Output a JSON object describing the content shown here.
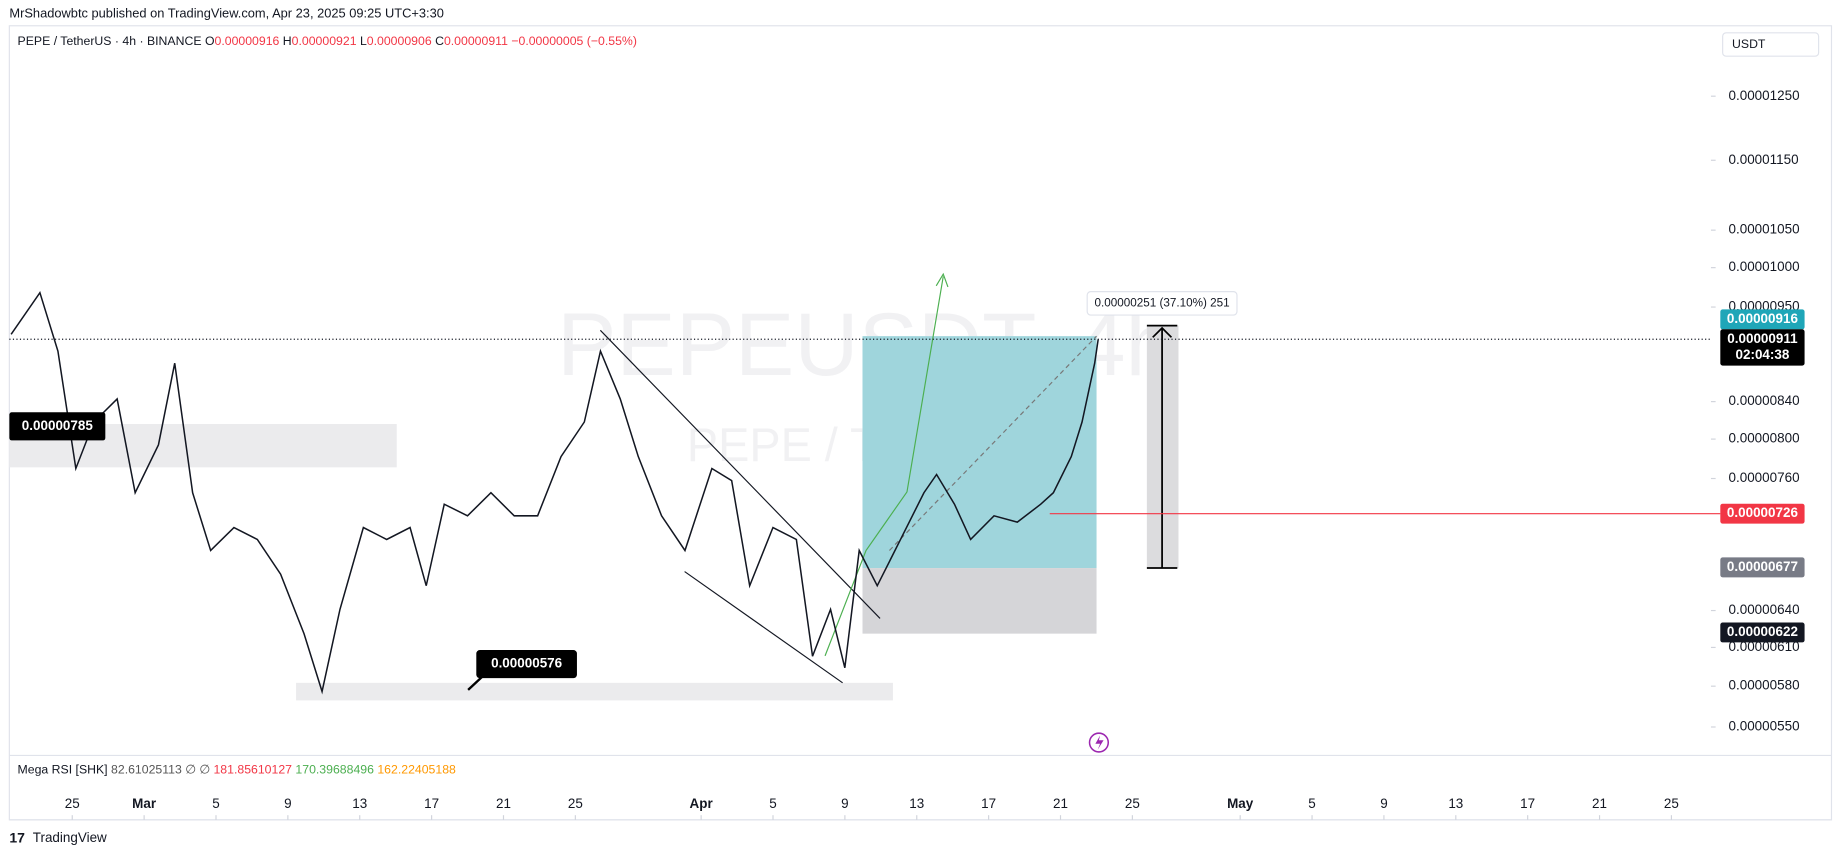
{
  "header": {
    "published": "MrShadowbtc published on TradingView.com, Apr 23, 2025 09:25 UTC+3:30",
    "brand": "TradingView"
  },
  "chart_data": {
    "type": "line",
    "title": "PEPE / TetherUS · 4h · BINANCE",
    "ohlc": [
      {
        "key": "O",
        "value": "0.00000916"
      },
      {
        "key": "H",
        "value": "0.00000921"
      },
      {
        "key": "L",
        "value": "0.00000906"
      },
      {
        "key": "C",
        "value": "0.00000911"
      }
    ],
    "change": "−0.00000005 (−0.55%)",
    "watermark": "PEPEUSDT, 4h",
    "watermark_sub": "PEPE / TetherUS",
    "currency": "USDT",
    "color": "#131722",
    "log_scale": true,
    "x": [
      -3.4,
      -1.8,
      -0.8,
      0.2,
      1.2,
      2.5,
      3.5,
      4.8,
      5.7,
      6.7,
      7.7,
      9.0,
      10.3,
      11.6,
      12.9,
      13.9,
      14.9,
      16.2,
      17.5,
      18.8,
      19.7,
      20.7,
      22.0,
      23.3,
      24.6,
      25.9,
      27.2,
      28.5,
      29.4,
      30.5,
      31.5,
      32.8,
      34.1,
      35.6,
      36.7,
      37.7,
      39.0,
      40.3,
      41.2,
      42.2,
      43.0,
      43.8,
      44.8,
      46.1,
      47.4,
      48.1,
      49.1,
      50.0,
      51.3,
      52.6,
      53.9,
      54.6,
      55.6,
      56.2,
      56.9,
      57.1
    ],
    "values": [
      9.17e-06,
      9.68e-06,
      8.97e-06,
      7.7e-06,
      8.18e-06,
      8.43e-06,
      7.46e-06,
      7.94e-06,
      8.83e-06,
      7.46e-06,
      6.92e-06,
      7.13e-06,
      7.02e-06,
      6.71e-06,
      6.21e-06,
      5.76e-06,
      6.41e-06,
      7.13e-06,
      7.02e-06,
      7.13e-06,
      6.61e-06,
      7.35e-06,
      7.24e-06,
      7.46e-06,
      7.24e-06,
      7.24e-06,
      7.82e-06,
      8.18e-06,
      8.97e-06,
      8.43e-06,
      7.82e-06,
      7.24e-06,
      6.92e-06,
      7.7e-06,
      7.58e-06,
      6.61e-06,
      7.13e-06,
      7.02e-06,
      6.03e-06,
      6.41e-06,
      5.94e-06,
      6.92e-06,
      6.61e-06,
      7.02e-06,
      7.46e-06,
      7.64e-06,
      7.35e-06,
      7.02e-06,
      7.24e-06,
      7.18e-06,
      7.35e-06,
      7.46e-06,
      7.82e-06,
      8.18e-06,
      8.83e-06,
      9.11e-06
    ],
    "xlim": [
      -3.5,
      91.2
    ],
    "xticks": [
      {
        "value": 0,
        "label": "25"
      },
      {
        "value": 4,
        "label": "Mar"
      },
      {
        "value": 8,
        "label": "5"
      },
      {
        "value": 12,
        "label": "9"
      },
      {
        "value": 16,
        "label": "13"
      },
      {
        "value": 20,
        "label": "17"
      },
      {
        "value": 24,
        "label": "21"
      },
      {
        "value": 28,
        "label": "25"
      },
      {
        "value": 35,
        "label": "Apr"
      },
      {
        "value": 39,
        "label": "5"
      },
      {
        "value": 43,
        "label": "9"
      },
      {
        "value": 47,
        "label": "13"
      },
      {
        "value": 51,
        "label": "17"
      },
      {
        "value": 55,
        "label": "21"
      },
      {
        "value": 59,
        "label": "25"
      },
      {
        "value": 65,
        "label": "May"
      },
      {
        "value": 69,
        "label": "5"
      },
      {
        "value": 73,
        "label": "9"
      },
      {
        "value": 77,
        "label": "13"
      },
      {
        "value": 81,
        "label": "17"
      },
      {
        "value": 85,
        "label": "21"
      },
      {
        "value": 89,
        "label": "25"
      }
    ],
    "ylim": [
      5.3e-06,
      1.37e-05
    ],
    "yticks": [
      {
        "value": 1.25e-05,
        "label": "0.00001250"
      },
      {
        "value": 1.15e-05,
        "label": "0.00001150"
      },
      {
        "value": 1.05e-05,
        "label": "0.00001050"
      },
      {
        "value": 1e-05,
        "label": "0.00001000"
      },
      {
        "value": 9.5e-06,
        "label": "0.00000950"
      },
      {
        "value": 8.4e-06,
        "label": "0.00000840"
      },
      {
        "value": 8e-06,
        "label": "0.00000800"
      },
      {
        "value": 7.6e-06,
        "label": "0.00000760"
      },
      {
        "value": 6.4e-06,
        "label": "0.00000640"
      },
      {
        "value": 6.1e-06,
        "label": "0.00000610"
      },
      {
        "value": 5.8e-06,
        "label": "0.00000580"
      },
      {
        "value": 5.5e-06,
        "label": "0.00000550"
      }
    ],
    "price_labels": [
      {
        "value": 9.16e-06,
        "color": "#1fa6b8"
      },
      {
        "value": 9.11e-06,
        "color": "#000000",
        "countdown": "02:04:38",
        "line": "dotted"
      },
      {
        "value": 7.26e-06,
        "color": "#f23645",
        "line": "solid"
      },
      {
        "value": 6.77e-06,
        "color": "#787b86"
      },
      {
        "value": 6.22e-06,
        "color": "#131722"
      }
    ],
    "annotations": [
      "0.00000785",
      "0.00000576",
      "0.00000251 (37.10%) 251"
    ],
    "indicator": {
      "name": "Mega RSI [SHK]",
      "values": [
        "82.61025113",
        "∅",
        "∅",
        "181.85610127",
        "170.39688496",
        "162.22405188"
      ],
      "colors": [
        "#555",
        "#555",
        "#555",
        "#f23645",
        "#4caf50",
        "#ff9800"
      ]
    }
  }
}
